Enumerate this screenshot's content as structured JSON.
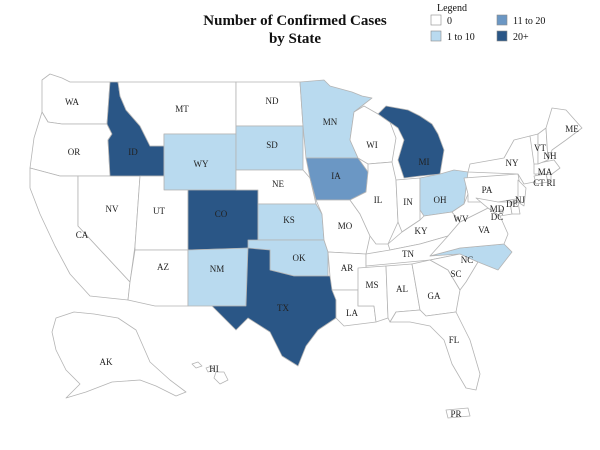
{
  "title_line1": "Number of Confirmed Cases",
  "title_line2": "by State",
  "legend": {
    "title": "Legend",
    "items": [
      {
        "label": "0",
        "color": "#ffffff"
      },
      {
        "label": "1 to 10",
        "color": "#b9daef"
      },
      {
        "label": "11 to 20",
        "color": "#6b97c4"
      },
      {
        "label": "20+",
        "color": "#2a5686"
      }
    ]
  },
  "states": {
    "WA": 0,
    "OR": 0,
    "CA": 0,
    "NV": 0,
    "ID": 3,
    "MT": 0,
    "WY": 1,
    "UT": 0,
    "AZ": 0,
    "CO": 3,
    "NM": 1,
    "ND": 0,
    "SD": 1,
    "NE": 0,
    "KS": 1,
    "OK": 1,
    "TX": 3,
    "MN": 1,
    "IA": 2,
    "MO": 0,
    "AR": 0,
    "LA": 0,
    "WI": 0,
    "IL": 0,
    "MI": 3,
    "IN": 0,
    "OH": 1,
    "KY": 0,
    "TN": 0,
    "MS": 0,
    "AL": 0,
    "GA": 0,
    "FL": 0,
    "SC": 0,
    "NC": 1,
    "VA": 0,
    "WV": 0,
    "PA": 0,
    "NY": 0,
    "MD": 0,
    "DE": 0,
    "NJ": 0,
    "DC": 0,
    "CT": 0,
    "RI": 0,
    "MA": 0,
    "VT": 0,
    "NH": 0,
    "ME": 0,
    "AK": 0,
    "HI": 0,
    "PR": 0
  }
}
